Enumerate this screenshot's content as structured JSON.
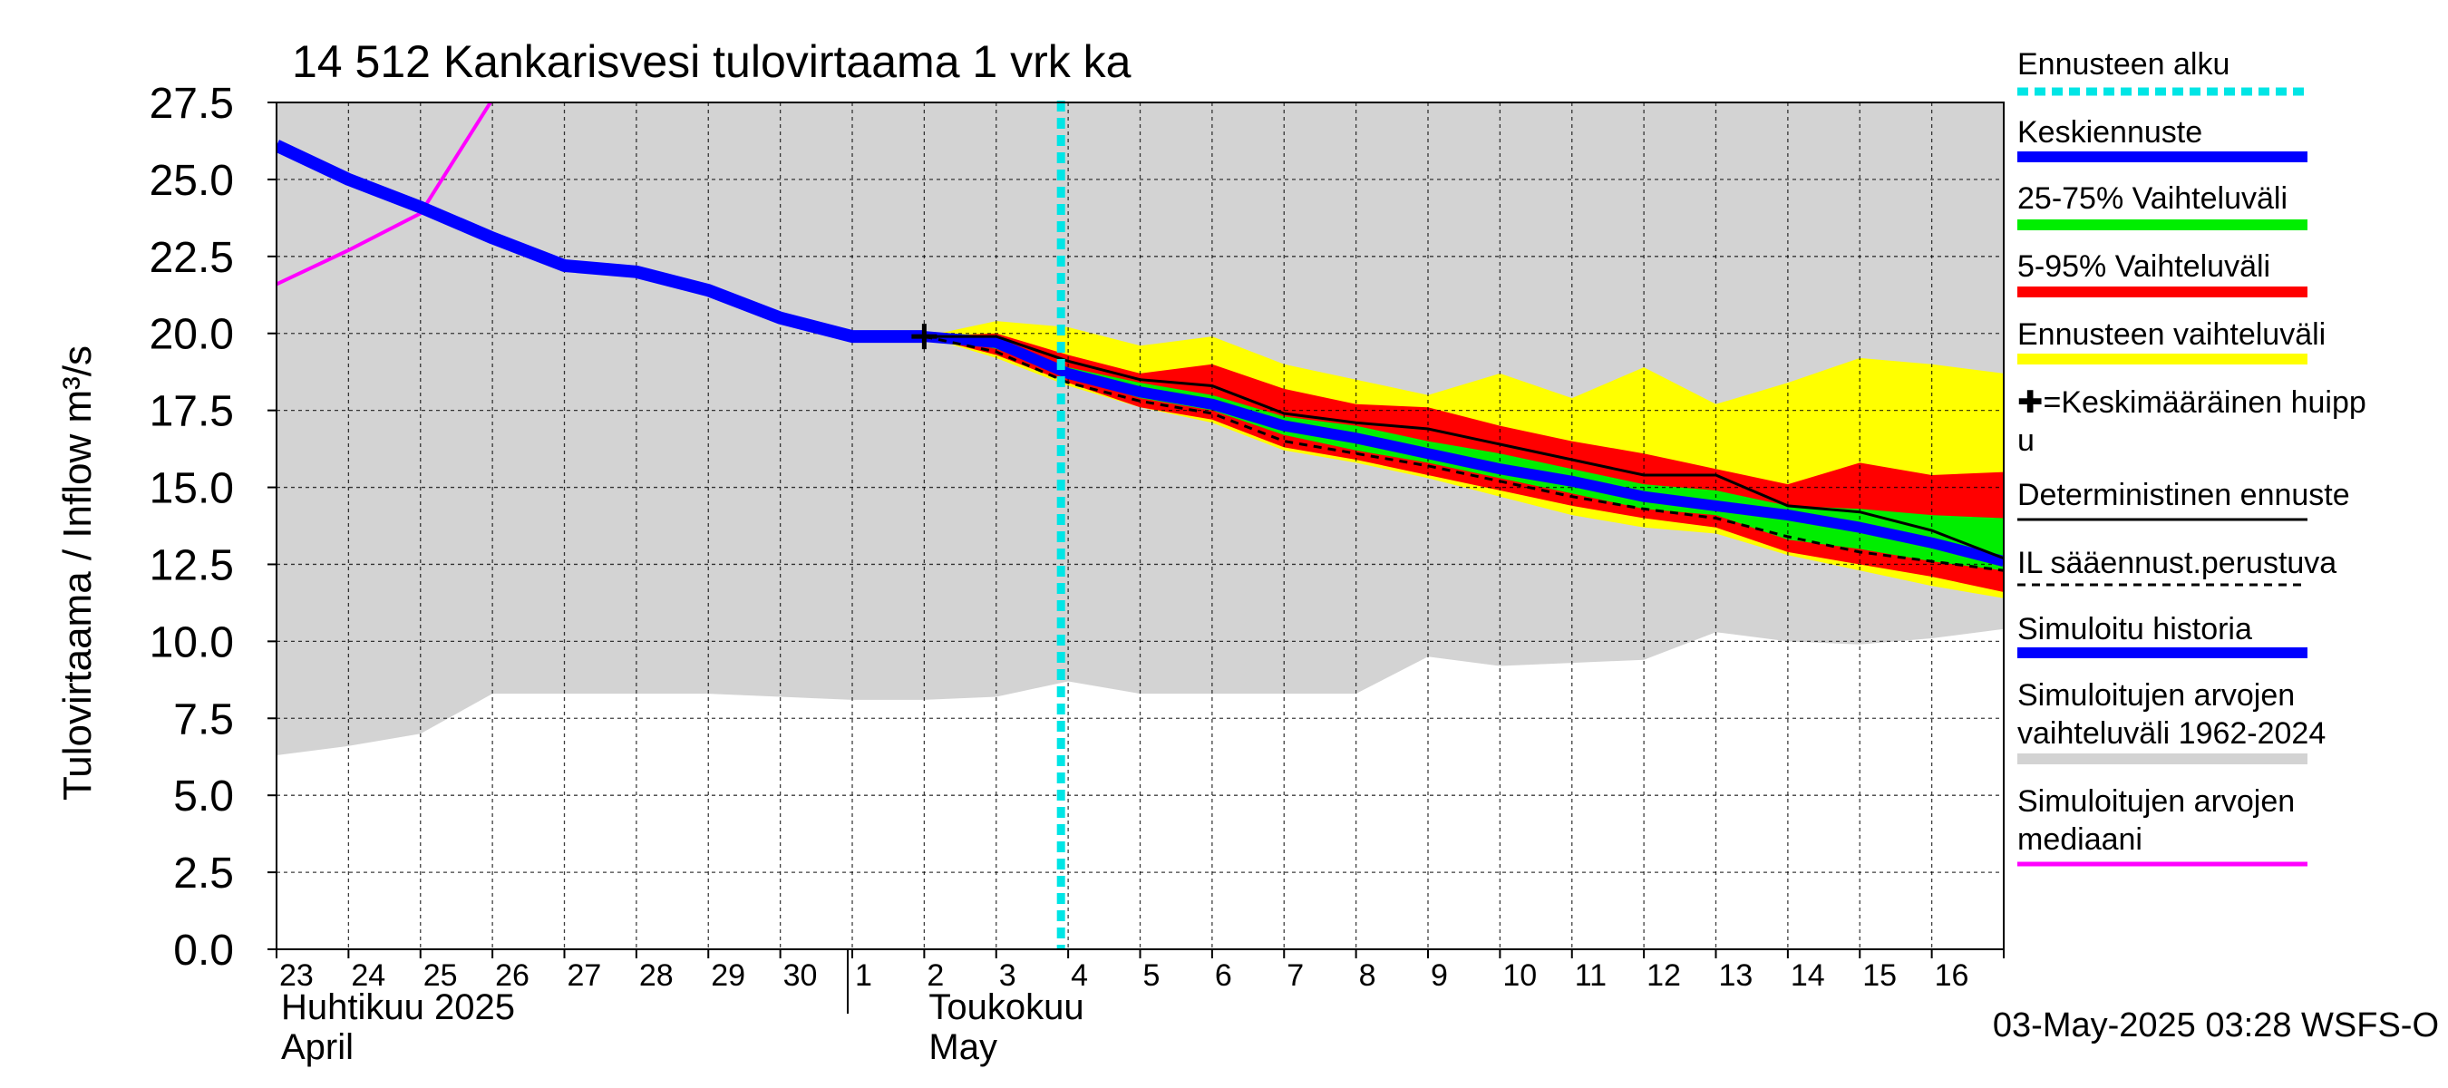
{
  "chart_data": {
    "type": "area",
    "title": "14 512 Kankarisvesi tulovirtaama 1 vrk ka",
    "ylabel": "Tulovirtaama / Inflow    m³/s",
    "ylim": [
      0,
      27.5
    ],
    "xlim": [
      23,
      47
    ],
    "grid": true,
    "legend_position": "right",
    "y_ticks": [
      "0.0",
      "2.5",
      "5.0",
      "7.5",
      "10.0",
      "12.5",
      "15.0",
      "17.5",
      "20.0",
      "22.5",
      "25.0",
      "27.5"
    ],
    "x_ticks": [
      {
        "x": 23,
        "label": "23"
      },
      {
        "x": 24,
        "label": "24"
      },
      {
        "x": 25,
        "label": "25"
      },
      {
        "x": 26,
        "label": "26"
      },
      {
        "x": 27,
        "label": "27"
      },
      {
        "x": 28,
        "label": "28"
      },
      {
        "x": 29,
        "label": "29"
      },
      {
        "x": 30,
        "label": "30"
      },
      {
        "x": 31,
        "label": "1"
      },
      {
        "x": 32,
        "label": "2"
      },
      {
        "x": 33,
        "label": "3"
      },
      {
        "x": 34,
        "label": "4"
      },
      {
        "x": 35,
        "label": "5"
      },
      {
        "x": 36,
        "label": "6"
      },
      {
        "x": 37,
        "label": "7"
      },
      {
        "x": 38,
        "label": "8"
      },
      {
        "x": 39,
        "label": "9"
      },
      {
        "x": 40,
        "label": "10"
      },
      {
        "x": 41,
        "label": "11"
      },
      {
        "x": 42,
        "label": "12"
      },
      {
        "x": 43,
        "label": "13"
      },
      {
        "x": 44,
        "label": "14"
      },
      {
        "x": 45,
        "label": "15"
      },
      {
        "x": 46,
        "label": "16"
      }
    ],
    "month_labels": [
      {
        "x": 23,
        "line1": "Huhtikuu  2025",
        "line2": "April"
      },
      {
        "x": 32,
        "line1": "Toukokuu",
        "line2": "May"
      }
    ],
    "month_divider_x": 31,
    "forecast_start_x": 33.9,
    "sim_range_upper": {
      "x": [
        23,
        47
      ],
      "y": [
        27.5,
        27.5
      ]
    },
    "sim_range_lower": {
      "x": [
        23,
        24,
        25,
        26,
        27,
        28,
        29,
        30,
        31,
        32,
        33,
        34,
        35,
        36,
        37,
        38,
        39,
        40,
        41,
        42,
        43,
        44,
        45,
        46,
        47
      ],
      "y": [
        6.3,
        6.6,
        7.0,
        8.3,
        8.3,
        8.3,
        8.3,
        8.2,
        8.1,
        8.1,
        8.2,
        8.7,
        8.3,
        8.3,
        8.3,
        8.3,
        9.5,
        9.2,
        9.3,
        9.4,
        10.3,
        10.0,
        9.9,
        10.1,
        10.4
      ]
    },
    "fc_range": {
      "x": [
        32,
        33,
        34,
        35,
        36,
        37,
        38,
        39,
        40,
        41,
        42,
        43,
        44,
        45,
        46,
        47
      ],
      "upper": [
        19.9,
        20.4,
        20.2,
        19.6,
        19.9,
        19.0,
        18.5,
        18.0,
        18.7,
        17.9,
        18.9,
        17.7,
        18.4,
        19.2,
        19.0,
        18.7
      ],
      "lower": [
        19.9,
        19.2,
        18.3,
        17.6,
        17.1,
        16.2,
        15.8,
        15.3,
        14.7,
        14.1,
        13.7,
        13.5,
        12.8,
        12.3,
        11.8,
        11.4
      ]
    },
    "p5_95": {
      "x": [
        32,
        33,
        34,
        35,
        36,
        37,
        38,
        39,
        40,
        41,
        42,
        43,
        44,
        45,
        46,
        47
      ],
      "upper": [
        19.9,
        20.0,
        19.3,
        18.7,
        19.0,
        18.2,
        17.7,
        17.6,
        17.0,
        16.5,
        16.1,
        15.6,
        15.1,
        15.8,
        15.4,
        15.5
      ],
      "lower": [
        19.9,
        19.3,
        18.4,
        17.6,
        17.2,
        16.3,
        15.9,
        15.4,
        14.9,
        14.4,
        14.0,
        13.7,
        12.9,
        12.5,
        12.1,
        11.6
      ]
    },
    "p25_75": {
      "x": [
        32,
        33,
        34,
        35,
        36,
        37,
        38,
        39,
        40,
        41,
        42,
        43,
        44,
        45,
        46,
        47
      ],
      "upper": [
        19.9,
        19.8,
        18.9,
        18.4,
        18.0,
        17.3,
        17.0,
        16.5,
        16.1,
        15.6,
        15.1,
        14.9,
        14.4,
        14.3,
        14.1,
        14.0
      ],
      "lower": [
        19.9,
        19.5,
        18.6,
        17.9,
        17.5,
        16.7,
        16.2,
        15.8,
        15.3,
        14.8,
        14.3,
        14.1,
        13.3,
        13.0,
        12.6,
        12.3
      ]
    },
    "series": [
      {
        "name": "Simuloitu historia",
        "x": [
          23,
          24,
          25,
          26,
          27,
          28,
          29,
          30,
          31,
          32
        ],
        "y": [
          26.1,
          25.0,
          24.1,
          23.1,
          22.2,
          22.0,
          21.4,
          20.5,
          19.9,
          19.9
        ]
      },
      {
        "name": "Keskiennuste",
        "x": [
          32,
          33,
          34,
          35,
          36,
          37,
          38,
          39,
          40,
          41,
          42,
          43,
          44,
          45,
          46,
          47
        ],
        "y": [
          19.9,
          19.7,
          18.7,
          18.1,
          17.7,
          17.0,
          16.6,
          16.1,
          15.6,
          15.2,
          14.7,
          14.4,
          14.1,
          13.7,
          13.2,
          12.6
        ]
      },
      {
        "name": "Deterministinen ennuste",
        "x": [
          32,
          33,
          34,
          35,
          36,
          37,
          38,
          39,
          40,
          41,
          42,
          43,
          44,
          45,
          46,
          47
        ],
        "y": [
          19.9,
          19.9,
          19.1,
          18.5,
          18.3,
          17.4,
          17.1,
          16.9,
          16.4,
          15.9,
          15.4,
          15.4,
          14.4,
          14.2,
          13.6,
          12.7
        ]
      },
      {
        "name": "IL sääennust.perustuva",
        "x": [
          32,
          33,
          34,
          35,
          36,
          37,
          38,
          39,
          40,
          41,
          42,
          43,
          44,
          45,
          46,
          47
        ],
        "y": [
          19.9,
          19.4,
          18.4,
          17.8,
          17.4,
          16.5,
          16.1,
          15.7,
          15.2,
          14.7,
          14.3,
          14.0,
          13.4,
          12.9,
          12.6,
          12.3
        ]
      },
      {
        "name": "Simuloitujen arvojen mediaani",
        "x": [
          23,
          24,
          25,
          26
        ],
        "y": [
          21.6,
          22.7,
          23.9,
          27.6
        ]
      }
    ],
    "peak_marker": {
      "x": 32,
      "y": 19.9
    },
    "colors": {
      "sim_range": "#d3d3d3",
      "fc_range": "#ffff00",
      "p5_95": "#ff0000",
      "p25_75": "#00ee00",
      "mean": "#0000ff",
      "history": "#0000ff",
      "median": "#ff00ff",
      "forecast_start": "#00e5e5",
      "deterministic": "#000000",
      "il": "#000000"
    }
  },
  "legend": {
    "items": [
      {
        "label": "Ennusteen alku",
        "color": "#00e5e5",
        "style": "dotted-thick"
      },
      {
        "label": "Keskiennuste",
        "color": "#0000ff",
        "style": "thick"
      },
      {
        "label": "25-75% Vaihteluväli",
        "color": "#00ee00",
        "style": "thick"
      },
      {
        "label": "5-95% Vaihteluväli",
        "color": "#ff0000",
        "style": "thick"
      },
      {
        "label": "Ennusteen vaihteluväli",
        "color": "#ffff00",
        "style": "thick"
      },
      {
        "label": "✚=Keskimääräinen huipp\nu",
        "color": "",
        "style": "none"
      },
      {
        "label": "Deterministinen ennuste",
        "color": "#000000",
        "style": "thin"
      },
      {
        "label": "IL sääennust.perustuva",
        "color": "#000000",
        "style": "dashed"
      },
      {
        "label": "Simuloitu historia",
        "color": "#0000ff",
        "style": "thick"
      },
      {
        "label": "Simuloitujen arvojen\nvaihteluväli 1962-2024",
        "color": "#d3d3d3",
        "style": "thick"
      },
      {
        "label": "Simuloitujen arvojen\nmediaani",
        "color": "#ff00ff",
        "style": "medium"
      }
    ]
  },
  "footer": {
    "timestamp": "03-May-2025 03:28 WSFS-O"
  }
}
